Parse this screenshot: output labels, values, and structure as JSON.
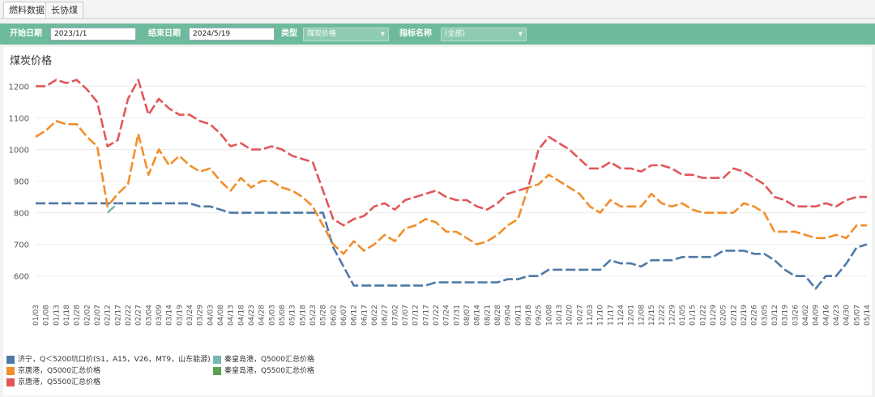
{
  "tabs": [
    {
      "label": "燃料数据",
      "active": true
    },
    {
      "label": "长协煤",
      "active": false
    }
  ],
  "toolbar": {
    "start_label": "开始日期",
    "start_value": "2023/1/1",
    "end_label": "结束日期",
    "end_value": "2024/5/19",
    "type_label": "类型",
    "type_value": "煤炭价格",
    "indicator_label": "指标名称",
    "indicator_value": "(全部)"
  },
  "chart_data": {
    "type": "line",
    "title": "煤炭价格",
    "ylim": [
      530,
      1260
    ],
    "yticks": [
      600,
      700,
      800,
      900,
      1000,
      1100,
      1200
    ],
    "grid": true,
    "legend_position": "bottom-left",
    "xticks": [
      "01/03",
      "01/08",
      "01/13",
      "01/18",
      "01/28",
      "02/02",
      "02/07",
      "02/12",
      "02/17",
      "02/22",
      "02/27",
      "03/04",
      "03/09",
      "03/14",
      "03/19",
      "03/24",
      "03/29",
      "04/03",
      "04/08",
      "04/13",
      "04/18",
      "04/23",
      "04/28",
      "05/03",
      "05/08",
      "05/13",
      "05/18",
      "05/23",
      "05/28",
      "06/02",
      "06/07",
      "06/12",
      "06/17",
      "06/22",
      "06/27",
      "07/02",
      "07/07",
      "07/12",
      "07/17",
      "07/22",
      "07/24",
      "07/31",
      "08/07",
      "08/14",
      "08/21",
      "08/28",
      "09/04",
      "09/11",
      "09/18",
      "09/25",
      "10/08",
      "10/13",
      "10/20",
      "10/27",
      "11/03",
      "11/10",
      "11/17",
      "11/24",
      "12/01",
      "12/08",
      "12/15",
      "12/22",
      "12/29",
      "01/05",
      "01/15",
      "01/22",
      "01/29",
      "02/05",
      "02/12",
      "02/19",
      "02/26",
      "03/05",
      "03/12",
      "03/19",
      "03/26",
      "04/02",
      "04/09",
      "04/16",
      "04/23",
      "04/30",
      "05/07",
      "05/14"
    ],
    "series": [
      {
        "name": "济宁，Q＜5200坑口价(S1，A15，V26，MT9，山东能源)",
        "color": "#4e79a7",
        "values": [
          830,
          830,
          830,
          830,
          830,
          830,
          830,
          830,
          830,
          830,
          830,
          830,
          830,
          830,
          830,
          830,
          820,
          820,
          810,
          800,
          800,
          800,
          800,
          800,
          800,
          800,
          800,
          800,
          800,
          690,
          630,
          570,
          570,
          570,
          570,
          570,
          570,
          570,
          570,
          580,
          580,
          580,
          580,
          580,
          580,
          580,
          590,
          590,
          600,
          600,
          620,
          620,
          620,
          620,
          620,
          620,
          650,
          640,
          640,
          630,
          650,
          650,
          650,
          660,
          660,
          660,
          660,
          680,
          680,
          680,
          670,
          670,
          650,
          620,
          600,
          600,
          560,
          600,
          600,
          640,
          690,
          700
        ]
      },
      {
        "name": "秦皇岛港，Q5000汇总价格",
        "color": "#76b7b2",
        "values": [
          null,
          null,
          null,
          null,
          null,
          null,
          null,
          800,
          830,
          null,
          null,
          null,
          null,
          null,
          null,
          null,
          null,
          null,
          null,
          null,
          null,
          null,
          null,
          null,
          null,
          null,
          null,
          null,
          null,
          null,
          null,
          null,
          null,
          null,
          null,
          null,
          null,
          null,
          null,
          null,
          null,
          null,
          null,
          null,
          null,
          null,
          null,
          null,
          null,
          null,
          null,
          null,
          null,
          null,
          null,
          null,
          null,
          null,
          null,
          null,
          null,
          null,
          null,
          null,
          null,
          null,
          null,
          null,
          null,
          null,
          null,
          null,
          null,
          null,
          null,
          null,
          null,
          null,
          null,
          null,
          null,
          null
        ]
      },
      {
        "name": "京唐港，Q5000汇总价格",
        "color": "#f28e2b",
        "values": [
          1040,
          1060,
          1090,
          1080,
          1080,
          1040,
          1010,
          820,
          860,
          890,
          1050,
          920,
          1000,
          950,
          980,
          950,
          930,
          940,
          900,
          870,
          910,
          880,
          900,
          900,
          880,
          870,
          850,
          820,
          760,
          700,
          670,
          710,
          680,
          700,
          730,
          710,
          750,
          760,
          780,
          770,
          740,
          740,
          720,
          700,
          710,
          730,
          760,
          780,
          880,
          890,
          920,
          900,
          880,
          860,
          820,
          800,
          840,
          820,
          820,
          820,
          860,
          830,
          820,
          830,
          810,
          800,
          800,
          800,
          800,
          830,
          820,
          800,
          740,
          740,
          740,
          730,
          720,
          720,
          730,
          720,
          760,
          760
        ]
      },
      {
        "name": "秦皇岛港，Q5500汇总价格",
        "color": "#59a14f",
        "values": []
      },
      {
        "name": "京唐港，Q5500汇总价格",
        "color": "#e15759",
        "values": [
          1200,
          1200,
          1220,
          1210,
          1220,
          1190,
          1150,
          1010,
          1030,
          1160,
          1220,
          1110,
          1160,
          1130,
          1110,
          1110,
          1090,
          1080,
          1050,
          1010,
          1020,
          1000,
          1000,
          1010,
          1000,
          980,
          970,
          960,
          870,
          780,
          760,
          780,
          790,
          820,
          830,
          810,
          840,
          850,
          860,
          870,
          850,
          840,
          840,
          820,
          810,
          830,
          860,
          870,
          880,
          1000,
          1040,
          1020,
          1000,
          970,
          940,
          940,
          960,
          940,
          940,
          930,
          950,
          950,
          940,
          920,
          920,
          910,
          910,
          910,
          940,
          930,
          910,
          890,
          850,
          840,
          820,
          820,
          820,
          830,
          820,
          840,
          850,
          850
        ]
      }
    ]
  }
}
